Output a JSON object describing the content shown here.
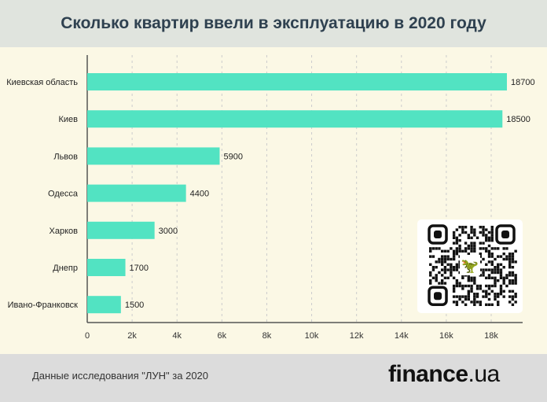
{
  "title": "Сколько квартир ввели в эксплуатацию в 2020 году",
  "footer": {
    "source": "Данные исследования \"ЛУН\" за 2020",
    "logo_main": "finance",
    "logo_suffix": ".ua"
  },
  "colors": {
    "bar": "#52e3c2",
    "axis": "#555555"
  },
  "chart_data": {
    "type": "bar",
    "orientation": "horizontal",
    "title": "Сколько квартир ввели в эксплуатацию в 2020 году",
    "categories": [
      "Киевская область",
      "Киев",
      "Львов",
      "Одесса",
      "Харков",
      "Днепр",
      "Ивано-Франковск"
    ],
    "values": [
      18700,
      18500,
      5900,
      4400,
      3000,
      1700,
      1500
    ],
    "xlim": [
      0,
      18000
    ],
    "xticks": [
      0,
      2000,
      4000,
      6000,
      8000,
      10000,
      12000,
      14000,
      16000,
      18000
    ],
    "xtick_labels": [
      "0",
      "2k",
      "4k",
      "6k",
      "8k",
      "10k",
      "12k",
      "14k",
      "16k",
      "18k"
    ],
    "grid": true
  }
}
